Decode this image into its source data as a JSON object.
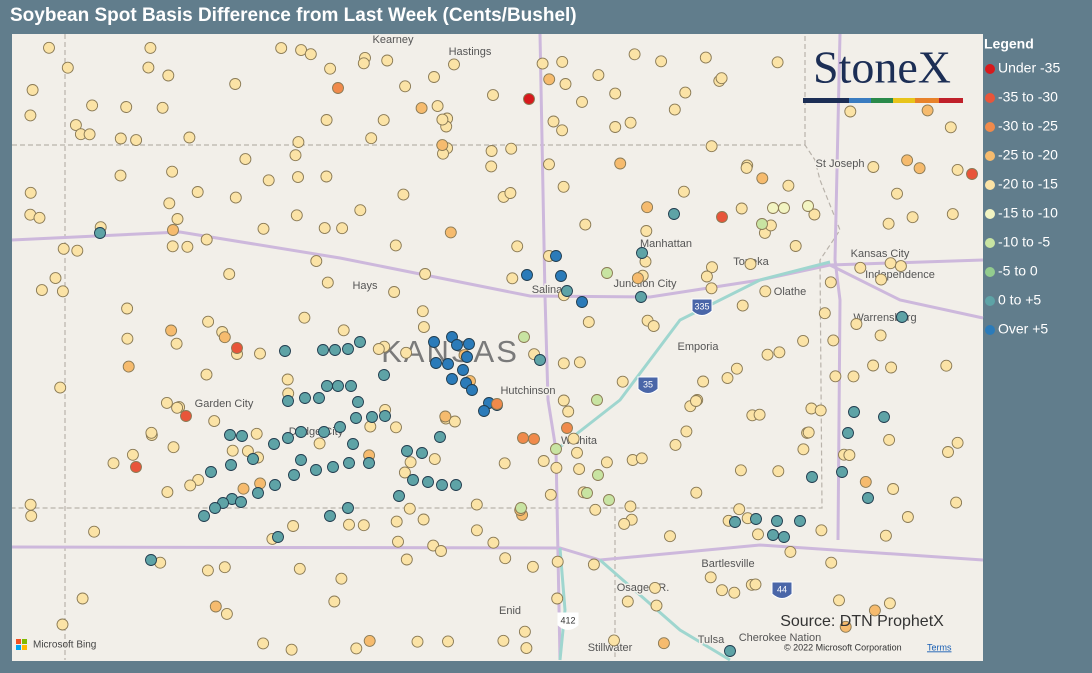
{
  "header": {
    "title": "Soybean Spot Basis Difference from Last Week (Cents/Bushel)"
  },
  "legend": {
    "title": "Legend",
    "items": [
      {
        "label": "Under -35",
        "color": "#d7191c"
      },
      {
        "label": "-35 to -30",
        "color": "#e8553a"
      },
      {
        "label": "-30 to -25",
        "color": "#f08a4b"
      },
      {
        "label": "-25 to -20",
        "color": "#f6bb6e"
      },
      {
        "label": "-20 to -15",
        "color": "#fbe3a6"
      },
      {
        "label": "-15 to -10",
        "color": "#f2f4c2"
      },
      {
        "label": "-10 to -5",
        "color": "#c8e4a2"
      },
      {
        "label": "-5 to 0",
        "color": "#93cc8e"
      },
      {
        "label": "0 to +5",
        "color": "#5ea3a6"
      },
      {
        "label": "Over +5",
        "color": "#2b7bb9"
      }
    ]
  },
  "map": {
    "labels": [
      "Kearney",
      "Hastings",
      "St Joseph",
      "Manhattan",
      "Kansas City",
      "Independence",
      "Hays",
      "Salina",
      "Junction City",
      "Topeka",
      "Olathe",
      "Warrensburg",
      "Emporia",
      "Hutchinson",
      "Garden City",
      "Dodge City",
      "Wichita",
      "Bartlesville",
      "Osage I.R.",
      "Enid",
      "Tulsa",
      "Cherokee Nation",
      "Stillwater"
    ],
    "region_label": "KANSAS",
    "shields": [
      "335",
      "35",
      "44",
      "412"
    ],
    "provider": "Microsoft Bing",
    "copyright": "© 2022 Microsoft Corporation",
    "terms": "Terms"
  },
  "logo": "StoneX",
  "source": "Source: DTN ProphetX"
}
